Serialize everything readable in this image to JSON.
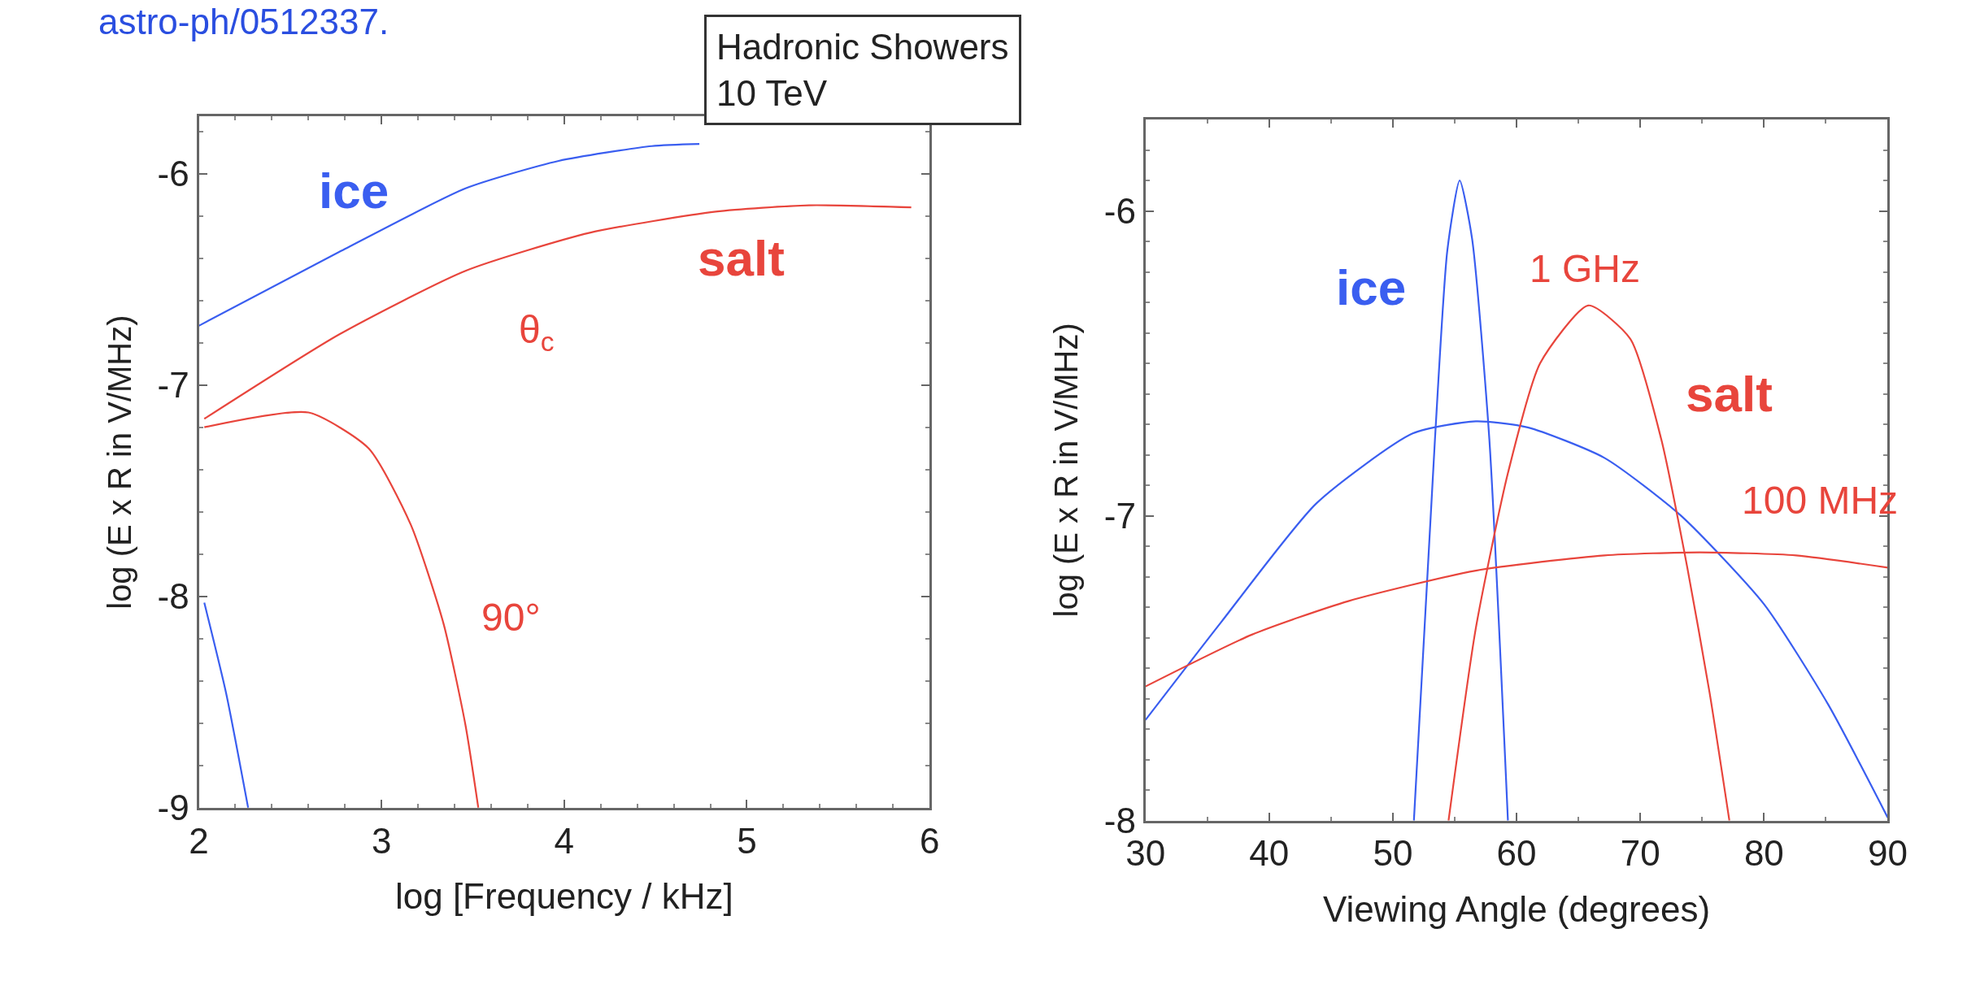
{
  "chart_data": [
    {
      "type": "line",
      "xlabel": "log [Frequency / kHz]",
      "ylabel": "log (E x R in V/MHz)",
      "xlim": [
        2,
        6
      ],
      "ylim": [
        -9,
        -5.73
      ],
      "xticks": [
        2,
        3,
        4,
        5,
        6
      ],
      "yticks": [
        -9,
        -8,
        -7,
        -6
      ],
      "series": [
        {
          "color": "#3a5ef0",
          "x": [
            2,
            2.77,
            3.46,
            3.97,
            4.48,
            4.74
          ],
          "values": [
            -6.72,
            -6.37,
            -6.07,
            -5.94,
            -5.87,
            -5.86
          ]
        },
        {
          "color": "#3a5ef0",
          "x": [
            2.03,
            2.15,
            2.27
          ],
          "values": [
            -8.03,
            -8.46,
            -9
          ]
        },
        {
          "color": "#e8453c",
          "x": [
            2.03,
            2.77,
            3.46,
            4.14,
            4.83,
            5.34,
            5.9
          ],
          "values": [
            -7.16,
            -6.76,
            -6.46,
            -6.28,
            -6.18,
            -6.15,
            -6.16
          ]
        },
        {
          "color": "#e8453c",
          "x": [
            2.03,
            2.6,
            2.93,
            3.16,
            3.34,
            3.46,
            3.53
          ],
          "values": [
            -7.2,
            -7.13,
            -7.3,
            -7.66,
            -8.13,
            -8.61,
            -9
          ]
        }
      ],
      "annotations": [
        "astro-ph/0512337.",
        "Hadronic Showers\n10 TeV",
        "ice",
        "salt",
        "θ$_{c}$",
        "90°"
      ]
    },
    {
      "type": "line",
      "xlabel": "Viewing Angle (degrees)",
      "ylabel": "log (E x R in V/MHz)",
      "xlim": [
        30,
        90
      ],
      "ylim": [
        -8,
        -5.7
      ],
      "xticks": [
        30,
        40,
        50,
        60,
        70,
        80,
        90
      ],
      "yticks": [
        -8,
        -7,
        -6
      ],
      "series": [
        {
          "color": "#3a5ef0",
          "x": [
            51.7,
            53.4,
            54.4,
            55.4,
            56.4,
            57.8,
            59.3
          ],
          "values": [
            -8,
            -6.75,
            -6.13,
            -5.9,
            -6.09,
            -6.75,
            -8
          ]
        },
        {
          "color": "#3a5ef0",
          "x": [
            30,
            36.1,
            43.8,
            51.6,
            56.7,
            60.9,
            67.1,
            73.3,
            80,
            85.2,
            90
          ],
          "values": [
            -7.67,
            -7.35,
            -6.96,
            -6.73,
            -6.69,
            -6.71,
            -6.81,
            -7.0,
            -7.29,
            -7.62,
            -7.99
          ]
        },
        {
          "color": "#e8453c",
          "x": [
            54.5,
            56.7,
            59.3,
            61.9,
            65.8,
            69.2,
            71.7,
            73.8,
            75.6,
            77.2
          ],
          "values": [
            -8,
            -7.37,
            -6.86,
            -6.5,
            -6.31,
            -6.42,
            -6.75,
            -7.17,
            -7.58,
            -8
          ]
        },
        {
          "color": "#e8453c",
          "x": [
            30,
            38.6,
            46.4,
            56.7,
            67.1,
            74.8,
            82.6,
            90
          ],
          "values": [
            -7.56,
            -7.39,
            -7.28,
            -7.18,
            -7.13,
            -7.12,
            -7.13,
            -7.17
          ]
        }
      ],
      "annotations": [
        "ice",
        "1 GHz",
        "salt",
        "100 MHz"
      ]
    }
  ]
}
